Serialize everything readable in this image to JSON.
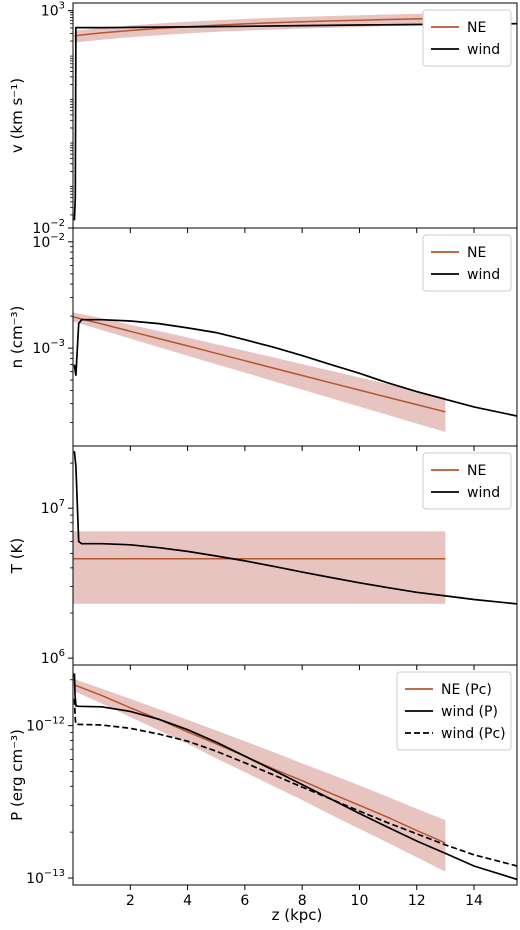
{
  "colors": {
    "ne": "#b6562c",
    "band": "#e8c4c1",
    "wind": "#000000"
  },
  "xaxis": {
    "label": "z (kpc)",
    "range": [
      0,
      15.5
    ],
    "ticks": [
      "2",
      "4",
      "6",
      "8",
      "10",
      "12",
      "14"
    ]
  },
  "chart_data": [
    {
      "type": "line",
      "ylabel": "v (km s⁻¹)",
      "yscale": "log",
      "ylim": [
        0.01,
        1500
      ],
      "yticks": [
        {
          "value": 1000,
          "base": "10",
          "exp": "3"
        },
        {
          "value": 0.01,
          "base": "10",
          "exp": "−2"
        }
      ],
      "legend": {
        "position": "top-right",
        "entries": [
          "NE",
          "wind"
        ]
      },
      "series": [
        {
          "name": "NE",
          "style": "solid",
          "color": "ne",
          "x": [
            0.05,
            1,
            2,
            3,
            4,
            5,
            6,
            7,
            8,
            9,
            10,
            11,
            12,
            13
          ],
          "y": [
            265,
            308,
            350,
            390,
            428,
            463,
            496,
            526,
            554,
            580,
            604,
            626,
            646,
            665
          ]
        },
        {
          "name": "wind",
          "style": "solid",
          "color": "wind",
          "x": [
            0.05,
            0.08,
            0.1,
            0.15,
            0.2,
            1,
            2,
            4,
            6,
            8,
            10,
            12,
            14,
            15.5
          ],
          "y": [
            0.015,
            0.05,
            405,
            410,
            408,
            408,
            412,
            422,
            437,
            453,
            468,
            481,
            493,
            500
          ]
        }
      ],
      "band": {
        "series": "NE",
        "x": [
          0.05,
          1,
          2,
          3,
          4,
          5,
          6,
          7,
          8,
          9,
          10,
          11,
          12,
          13
        ],
        "lower": [
          185,
          215,
          245,
          273,
          300,
          324,
          347,
          368,
          388,
          406,
          423,
          438,
          452,
          466
        ],
        "upper": [
          345,
          400,
          455,
          507,
          556,
          602,
          645,
          684,
          720,
          754,
          785,
          814,
          840,
          864
        ]
      }
    },
    {
      "type": "line",
      "ylabel": "n (cm⁻³)",
      "yscale": "log",
      "ylim": [
        0.00012,
        0.0135
      ],
      "yticks": [
        {
          "value": 0.01,
          "base": "10",
          "exp": "−2"
        },
        {
          "value": 0.001,
          "base": "10",
          "exp": "−3"
        }
      ],
      "legend": {
        "position": "top-right",
        "entries": [
          "NE",
          "wind"
        ]
      },
      "series": [
        {
          "name": "NE",
          "style": "solid",
          "color": "ne",
          "x": [
            0,
            1,
            2,
            3,
            4,
            5,
            6,
            7,
            8,
            9,
            10,
            11,
            12,
            13
          ],
          "y": [
            0.00197,
            0.00169,
            0.00144,
            0.00123,
            0.00105,
            0.000894,
            0.000762,
            0.000649,
            0.000553,
            0.000472,
            0.000403,
            0.000344,
            0.000294,
            0.000252
          ]
        },
        {
          "name": "wind",
          "style": "solid",
          "color": "wind",
          "x": [
            0.05,
            0.1,
            0.2,
            0.3,
            1,
            2,
            3,
            4,
            5,
            6,
            7,
            8,
            9,
            10,
            11,
            12,
            13,
            14,
            15.5
          ],
          "y": [
            0.0007,
            0.00055,
            0.0017,
            0.00185,
            0.00185,
            0.0018,
            0.0017,
            0.00155,
            0.0014,
            0.0012,
            0.00102,
            0.00085,
            0.0007,
            0.00058,
            0.00047,
            0.00039,
            0.00033,
            0.00028,
            0.00023
          ]
        }
      ],
      "band": {
        "series": "NE",
        "x": [
          0,
          1,
          2,
          3,
          4,
          5,
          6,
          7,
          8,
          9,
          10,
          11,
          12,
          13
        ],
        "lower": [
          0.00178,
          0.00148,
          0.00123,
          0.00102,
          0.000849,
          0.000706,
          0.000588,
          0.000489,
          0.000407,
          0.000339,
          0.000282,
          0.000235,
          0.000195,
          0.000163
        ],
        "upper": [
          0.00217,
          0.00191,
          0.00166,
          0.00145,
          0.00126,
          0.00109,
          0.000945,
          0.000818,
          0.000708,
          0.000612,
          0.000529,
          0.000458,
          0.000396,
          0.000342
        ]
      }
    },
    {
      "type": "line",
      "ylabel": "T (K)",
      "yscale": "log",
      "ylim": [
        900000,
        26000000
      ],
      "yticks": [
        {
          "value": 10000000,
          "base": "10",
          "exp": "7"
        },
        {
          "value": 1000000,
          "base": "10",
          "exp": "6"
        }
      ],
      "legend": {
        "position": "top-right",
        "entries": [
          "NE",
          "wind"
        ]
      },
      "series": [
        {
          "name": "NE",
          "style": "solid",
          "color": "ne",
          "x": [
            0,
            13
          ],
          "y": [
            4600000,
            4600000
          ]
        },
        {
          "name": "wind",
          "style": "solid",
          "color": "wind",
          "x": [
            0.05,
            0.1,
            0.2,
            0.3,
            1,
            2,
            3,
            4,
            5,
            6,
            7,
            8,
            9,
            10,
            11,
            12,
            13,
            14,
            15.5
          ],
          "y": [
            24000000,
            19000000,
            6000000,
            5800000,
            5800000,
            5700000,
            5450000,
            5150000,
            4800000,
            4450000,
            4100000,
            3750000,
            3450000,
            3180000,
            2950000,
            2750000,
            2600000,
            2460000,
            2300000
          ]
        }
      ],
      "band": {
        "series": "NE",
        "x": [
          0,
          13
        ],
        "lower": [
          2300000,
          2300000
        ],
        "upper": [
          7000000,
          7000000
        ]
      }
    },
    {
      "type": "line",
      "ylabel": "P (erg cm⁻³)",
      "xlabel": "z (kpc)",
      "yscale": "log",
      "ylim": [
        9e-14,
        2.5e-12
      ],
      "yticks": [
        {
          "value": 1e-12,
          "base": "10",
          "exp": "−12"
        },
        {
          "value": 1e-13,
          "base": "10",
          "exp": "−13"
        }
      ],
      "legend": {
        "position": "top-right",
        "entries": [
          "NE (Pc)",
          "wind (P)",
          "wind (Pc)"
        ]
      },
      "series": [
        {
          "name": "NE (Pc)",
          "style": "solid",
          "color": "ne",
          "x": [
            0.05,
            1,
            2,
            3,
            4,
            5,
            6,
            7,
            8,
            9,
            10,
            11,
            12,
            13
          ],
          "y": [
            1.85e-12,
            1.58e-12,
            1.31e-12,
            1.1e-12,
            9.1e-13,
            7.6e-13,
            6.3e-13,
            5.2e-13,
            4.35e-13,
            3.6e-13,
            3e-13,
            2.5e-13,
            2.05e-13,
            1.7e-13
          ]
        },
        {
          "name": "wind (P)",
          "style": "solid",
          "color": "wind",
          "x": [
            0.05,
            0.07,
            0.1,
            0.2,
            1,
            2,
            3,
            4,
            5,
            6,
            7,
            8,
            9,
            10,
            11,
            12,
            13,
            14,
            15.5
          ],
          "y": [
            2.2e-12,
            1.6e-12,
            1.35e-12,
            1.34e-12,
            1.33e-12,
            1.24e-12,
            1.1e-12,
            9.4e-13,
            7.8e-13,
            6.3e-13,
            5.1e-13,
            4.1e-13,
            3.3e-13,
            2.65e-13,
            2.15e-13,
            1.75e-13,
            1.45e-13,
            1.2e-13,
            9.8e-14
          ]
        },
        {
          "name": "wind (Pc)",
          "style": "dashed",
          "color": "wind",
          "x": [
            0.05,
            0.08,
            0.1,
            1,
            2,
            3,
            4,
            5,
            6,
            7,
            8,
            9,
            10,
            11,
            12,
            13,
            14,
            15.5
          ],
          "y": [
            1.5e-12,
            1.1e-12,
            1.02e-12,
            1.01e-12,
            9.6e-13,
            8.8e-13,
            7.9e-13,
            6.8e-13,
            5.7e-13,
            4.75e-13,
            3.95e-13,
            3.3e-13,
            2.75e-13,
            2.3e-13,
            1.95e-13,
            1.65e-13,
            1.42e-13,
            1.2e-13
          ]
        }
      ],
      "band": {
        "series": "NE (Pc)",
        "x": [
          0.05,
          1,
          2,
          3,
          4,
          5,
          6,
          7,
          8,
          9,
          10,
          11,
          12,
          13
        ],
        "lower": [
          1.68e-12,
          1.4e-12,
          1.14e-12,
          9.3e-13,
          7.6e-13,
          6.1e-13,
          4.95e-13,
          4e-13,
          3.25e-13,
          2.6e-13,
          2.1e-13,
          1.7e-13,
          1.37e-13,
          1.1e-13
        ],
        "upper": [
          2.02e-12,
          1.75e-12,
          1.5e-12,
          1.28e-12,
          1.09e-12,
          9.3e-13,
          7.9e-13,
          6.7e-13,
          5.65e-13,
          4.8e-13,
          4.05e-13,
          3.4e-13,
          2.85e-13,
          2.4e-13
        ]
      }
    }
  ]
}
